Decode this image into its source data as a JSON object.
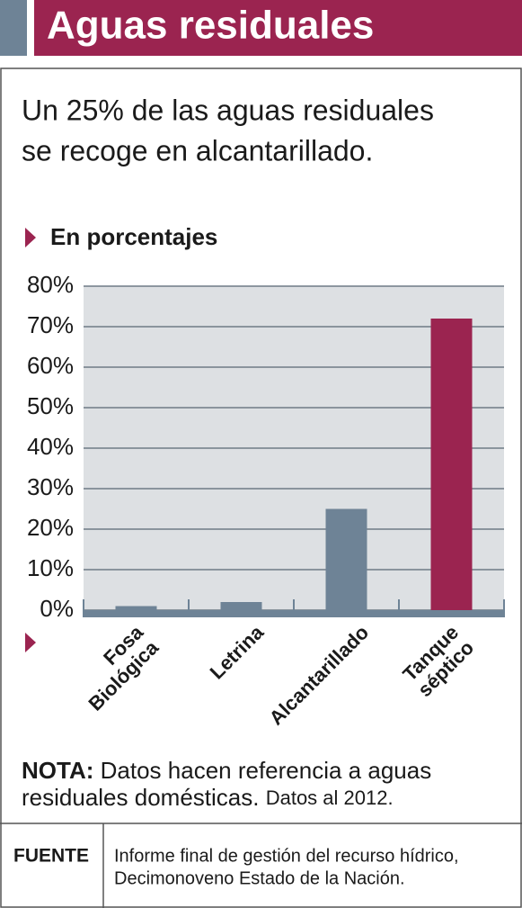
{
  "chart_data": {
    "type": "bar",
    "title": "Aguas residuales",
    "subtitle": [
      "Un 25% de las aguas residuales",
      "se recoge en alcantarillado."
    ],
    "axis_label": "En porcentajes",
    "categories": [
      [
        "Fosa",
        "Biológica"
      ],
      [
        "Letrina"
      ],
      [
        "Alcantarillado"
      ],
      [
        "Tanque",
        "séptico"
      ]
    ],
    "values": [
      1,
      2,
      25,
      72
    ],
    "colors": [
      "#6e8396",
      "#6e8396",
      "#6e8396",
      "#9b2450"
    ],
    "ylim": [
      0,
      80
    ],
    "yticks": [
      {
        "value": 0,
        "label": "0%"
      },
      {
        "value": 10,
        "label": "10%"
      },
      {
        "value": 20,
        "label": "20%"
      },
      {
        "value": 30,
        "label": "30%"
      },
      {
        "value": 40,
        "label": "40%"
      },
      {
        "value": 50,
        "label": "50%"
      },
      {
        "value": 60,
        "label": "60%"
      },
      {
        "value": 70,
        "label": "70%"
      },
      {
        "value": 80,
        "label": "80%"
      }
    ],
    "grid": true,
    "note": {
      "label": "NOTA:",
      "text": "Datos hacen referencia a aguas",
      "text2": "residuales domésticas.",
      "date": "Datos al 2012."
    },
    "source": {
      "label": "FUENTE",
      "lines": [
        "Informe final de gestión del recurso hídrico,",
        "Decimonoveno Estado de la Nación."
      ]
    }
  }
}
